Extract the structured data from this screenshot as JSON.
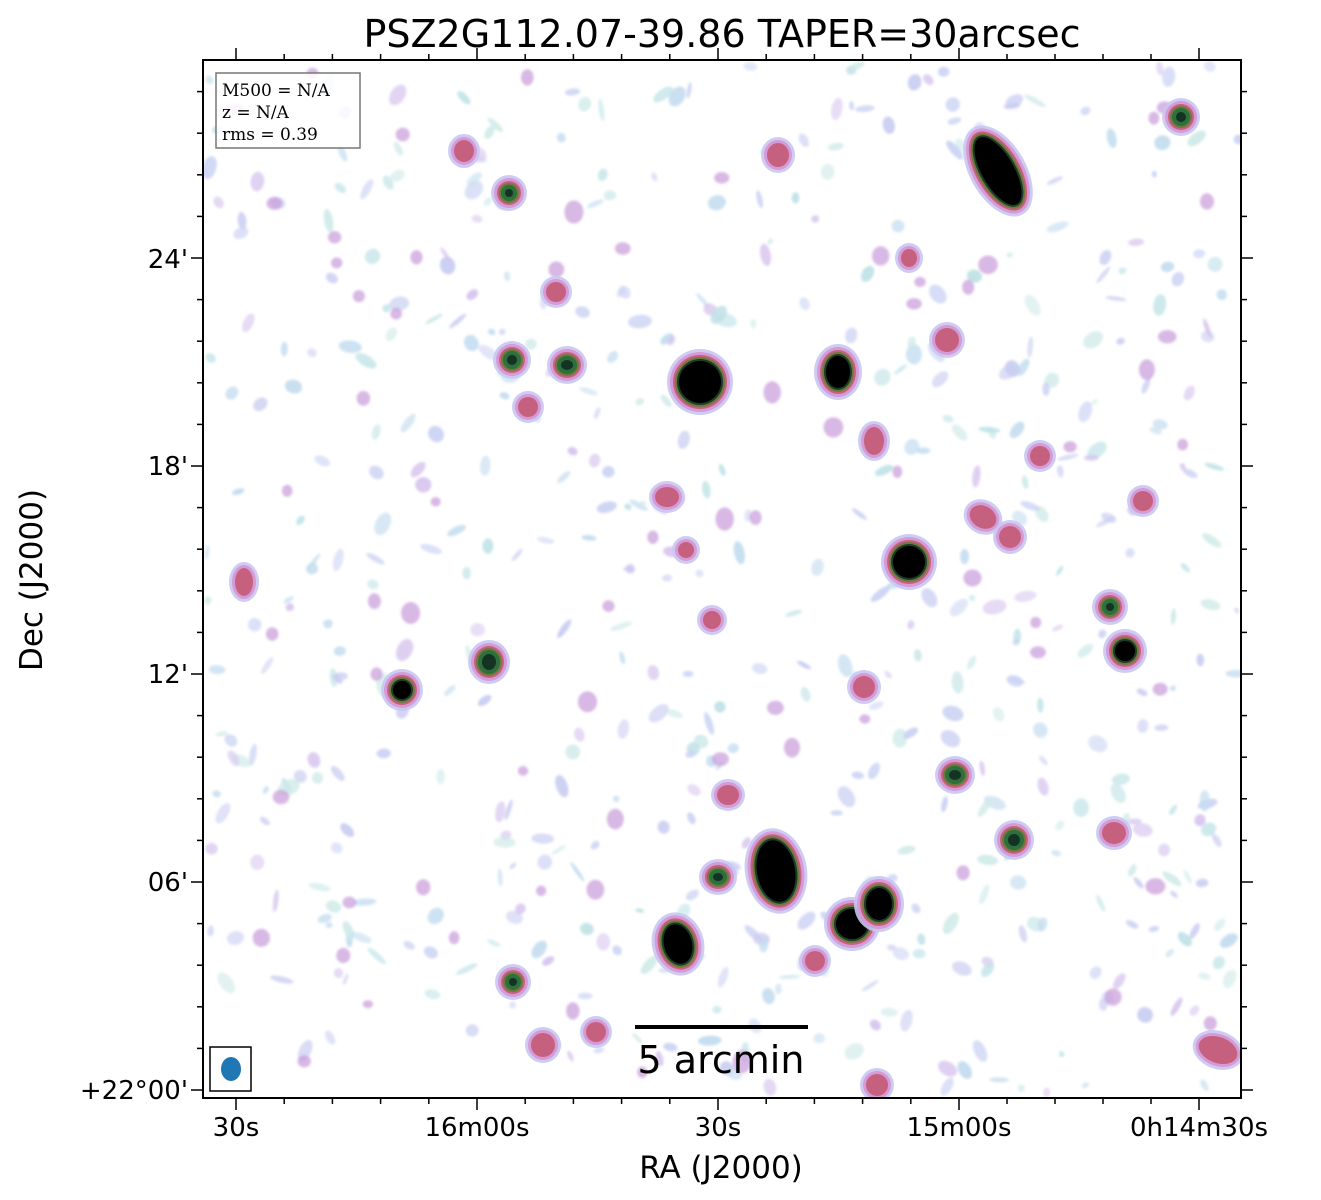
{
  "chart_data": {
    "type": "heatmap",
    "title": "PSZ2G112.07-39.86 TAPER=30arcsec",
    "xlabel": "RA (J2000)",
    "ylabel": "Dec (J2000)",
    "x_tick_labels": [
      "30s",
      "16m00s",
      "30s",
      "15m00s",
      "0h14m30s"
    ],
    "y_tick_labels": [
      "+22°00'",
      "06'",
      "12'",
      "18'",
      "24'"
    ],
    "info_box": {
      "mass": "M500 = N/A",
      "redshift": "z = N/A",
      "rms": "rms = 0.39"
    },
    "scale_bar_label": "5 arcmin",
    "beam_color": "#1f77b4",
    "colormap": "cubehelix_r"
  }
}
